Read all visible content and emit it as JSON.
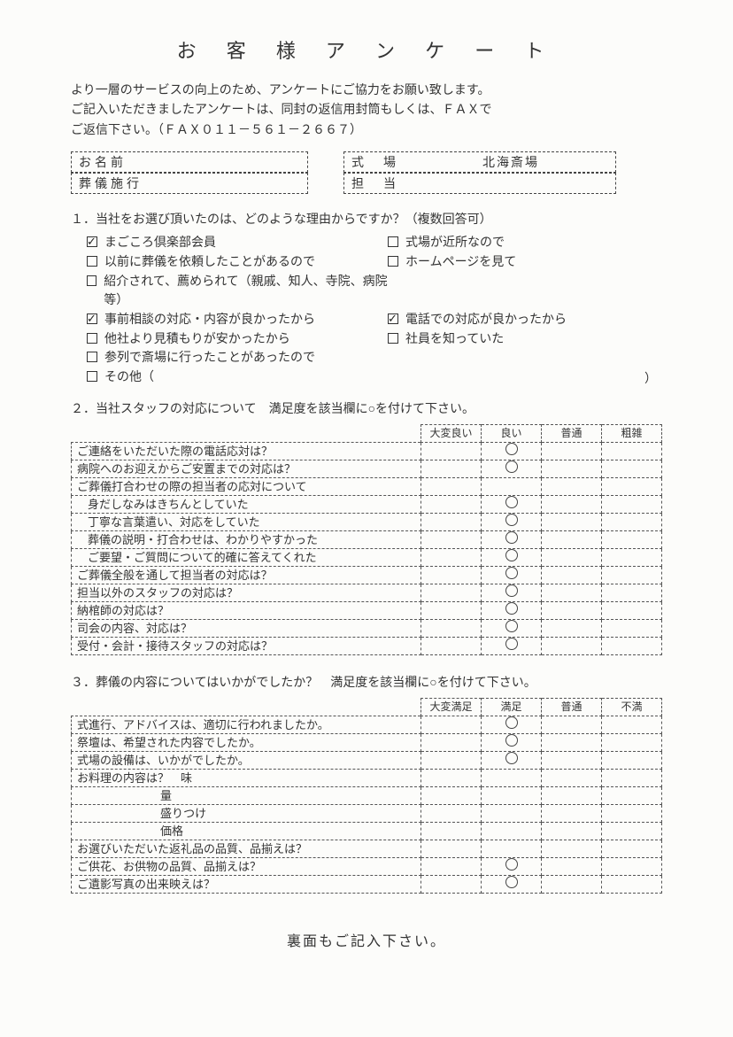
{
  "title": "お 客 様 ア ン ケ ー ト",
  "intro": "より一層のサービスの向上のため、アンケートにご協力をお願い致します。\nご記入いただきましたアンケートは、同封の返信用封筒もしくは、ＦＡＸで\nご返信下さい。（ＦＡＸ０１１－５６１－２６６７）",
  "fields": {
    "name_label": "お名前",
    "name_value": "",
    "exec_label": "葬儀施行",
    "exec_value": "",
    "venue_label": "式　場",
    "venue_value": "北海斎場",
    "staff_label": "担　当",
    "staff_value": ""
  },
  "q1": {
    "prompt": "１．当社をお選び頂いたのは、どのような理由からですか？（複数回答可）",
    "items": [
      {
        "label": "まごころ倶楽部会員",
        "checked": true
      },
      {
        "label": "式場が近所なので",
        "checked": false
      },
      {
        "label": "以前に葬儀を依頼したことがあるので",
        "checked": false
      },
      {
        "label": "ホームページを見て",
        "checked": false
      },
      {
        "label": "紹介されて、薦められて（親戚、知人、寺院、病院等）",
        "checked": false,
        "full": true
      },
      {
        "label": "事前相談の対応・内容が良かったから",
        "checked": true
      },
      {
        "label": "電話での対応が良かったから",
        "checked": true
      },
      {
        "label": "他社より見積もりが安かったから",
        "checked": false
      },
      {
        "label": "社員を知っていた",
        "checked": false
      },
      {
        "label": "参列で斎場に行ったことがあったので",
        "checked": false,
        "full": true
      },
      {
        "label": "その他（",
        "checked": false,
        "full": true
      }
    ]
  },
  "q2": {
    "prompt": "２．当社スタッフの対応について　満足度を該当欄に○を付けて下さい。",
    "headers": [
      "大変良い",
      "良い",
      "普通",
      "粗雑"
    ],
    "rows": [
      {
        "q": "ご連絡をいただいた際の電話応対は？",
        "mark": 1
      },
      {
        "q": "病院へのお迎えからご安置までの対応は？",
        "mark": 1
      },
      {
        "q": "ご葬儀打合わせの際の担当者の応対について",
        "mark": null
      },
      {
        "q": "身だしなみはきちんとしていた",
        "mark": 1,
        "indent": 1
      },
      {
        "q": "丁寧な言葉遣い、対応をしていた",
        "mark": 1,
        "indent": 1
      },
      {
        "q": "葬儀の説明・打合わせは、わかりやすかった",
        "mark": 1,
        "indent": 1
      },
      {
        "q": "ご要望・ご質問について的確に答えてくれた",
        "mark": 1,
        "indent": 1
      },
      {
        "q": "ご葬儀全般を通して担当者の対応は？",
        "mark": 1
      },
      {
        "q": "担当以外のスタッフの対応は？",
        "mark": 1
      },
      {
        "q": "納棺師の対応は？",
        "mark": 1
      },
      {
        "q": "司会の内容、対応は？",
        "mark": 1
      },
      {
        "q": "受付・会計・接待スタッフの対応は？",
        "mark": 1
      }
    ]
  },
  "q3": {
    "prompt": "３．葬儀の内容についてはいかがでしたか？　満足度を該当欄に○を付けて下さい。",
    "headers": [
      "大変満足",
      "満足",
      "普通",
      "不満"
    ],
    "rows": [
      {
        "q": "式進行、アドバイスは、適切に行われましたか。",
        "mark": 1
      },
      {
        "q": "祭壇は、希望された内容でしたか。",
        "mark": 1
      },
      {
        "q": "式場の設備は、いかがでしたか。",
        "mark": 1
      },
      {
        "q": "お料理の内容は？　味",
        "mark": null
      },
      {
        "q": "量",
        "mark": null,
        "indent": 2
      },
      {
        "q": "盛りつけ",
        "mark": null,
        "indent": 2
      },
      {
        "q": "価格",
        "mark": null,
        "indent": 2
      },
      {
        "q": "お選びいただいた返礼品の品質、品揃えは？",
        "mark": null
      },
      {
        "q": "ご供花、お供物の品質、品揃えは？",
        "mark": 1
      },
      {
        "q": "ご遺影写真の出来映えは？",
        "mark": 1
      }
    ]
  },
  "footer": "裏面もご記入下さい。"
}
